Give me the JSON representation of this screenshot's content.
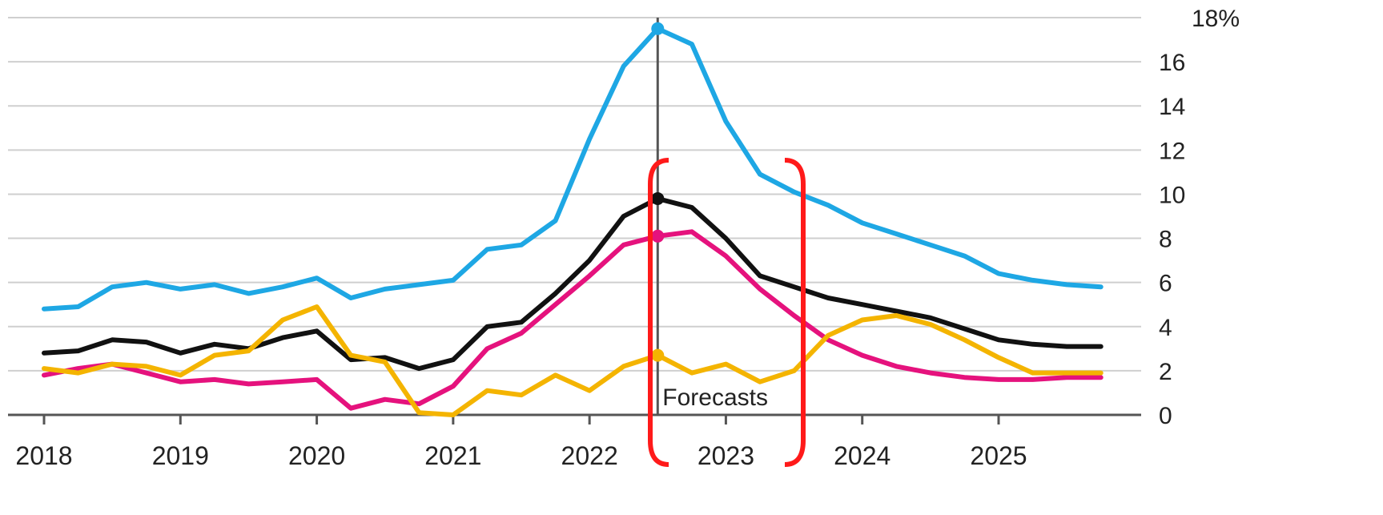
{
  "chart_data": {
    "type": "line",
    "y_unit_label": "18%",
    "ylim": [
      0,
      18
    ],
    "y_ticks": [
      0,
      2,
      4,
      6,
      8,
      10,
      12,
      14,
      16,
      18
    ],
    "y_tick_labels": [
      "0",
      "2",
      "4",
      "6",
      "8",
      "10",
      "12",
      "14",
      "16",
      "18%"
    ],
    "x_tick_labels": [
      "2018",
      "2019",
      "2020",
      "2021",
      "2022",
      "2023",
      "2024",
      "2025"
    ],
    "x_ticks": [
      2018,
      2019,
      2020,
      2021,
      2022,
      2023,
      2024,
      2025
    ],
    "xlim": [
      2017.75,
      2026.0
    ],
    "forecast_start": 2022.5,
    "forecast_label": "Forecasts",
    "grid": true,
    "series": [
      {
        "color": "#1ea7e4",
        "x": [
          2018.0,
          2018.25,
          2018.5,
          2018.75,
          2019.0,
          2019.25,
          2019.5,
          2019.75,
          2020.0,
          2020.25,
          2020.5,
          2020.75,
          2021.0,
          2021.25,
          2021.5,
          2021.75,
          2022.0,
          2022.25,
          2022.5,
          2022.75,
          2023.0,
          2023.25,
          2023.5,
          2023.75,
          2024.0,
          2024.25,
          2024.5,
          2024.75,
          2025.0,
          2025.25,
          2025.5,
          2025.75
        ],
        "values": [
          4.8,
          4.9,
          5.8,
          6.0,
          5.7,
          5.9,
          5.5,
          5.8,
          6.2,
          5.3,
          5.7,
          5.9,
          6.1,
          7.5,
          7.7,
          8.8,
          12.5,
          15.8,
          17.5,
          16.8,
          13.3,
          10.9,
          10.1,
          9.5,
          8.7,
          8.2,
          7.7,
          7.2,
          6.4,
          6.1,
          5.9,
          5.8
        ]
      },
      {
        "color": "#111111",
        "x": [
          2018.0,
          2018.25,
          2018.5,
          2018.75,
          2019.0,
          2019.25,
          2019.5,
          2019.75,
          2020.0,
          2020.25,
          2020.5,
          2020.75,
          2021.0,
          2021.25,
          2021.5,
          2021.75,
          2022.0,
          2022.25,
          2022.5,
          2022.75,
          2023.0,
          2023.25,
          2023.5,
          2023.75,
          2024.0,
          2024.25,
          2024.5,
          2024.75,
          2025.0,
          2025.25,
          2025.5,
          2025.75
        ],
        "values": [
          2.8,
          2.9,
          3.4,
          3.3,
          2.8,
          3.2,
          3.0,
          3.5,
          3.8,
          2.5,
          2.6,
          2.1,
          2.5,
          4.0,
          4.2,
          5.5,
          7.0,
          9.0,
          9.8,
          9.4,
          8.0,
          6.3,
          5.8,
          5.3,
          5.0,
          4.7,
          4.4,
          3.9,
          3.4,
          3.2,
          3.1,
          3.1
        ]
      },
      {
        "color": "#e5127d",
        "x": [
          2018.0,
          2018.25,
          2018.5,
          2018.75,
          2019.0,
          2019.25,
          2019.5,
          2019.75,
          2020.0,
          2020.25,
          2020.5,
          2020.75,
          2021.0,
          2021.25,
          2021.5,
          2021.75,
          2022.0,
          2022.25,
          2022.5,
          2022.75,
          2023.0,
          2023.25,
          2023.5,
          2023.75,
          2024.0,
          2024.25,
          2024.5,
          2024.75,
          2025.0,
          2025.25,
          2025.5,
          2025.75
        ],
        "values": [
          1.8,
          2.1,
          2.3,
          1.9,
          1.5,
          1.6,
          1.4,
          1.5,
          1.6,
          0.3,
          0.7,
          0.5,
          1.3,
          3.0,
          3.7,
          5.0,
          6.3,
          7.7,
          8.1,
          8.3,
          7.2,
          5.7,
          4.5,
          3.4,
          2.7,
          2.2,
          1.9,
          1.7,
          1.6,
          1.6,
          1.7,
          1.7
        ]
      },
      {
        "color": "#f4b400",
        "x": [
          2018.0,
          2018.25,
          2018.5,
          2018.75,
          2019.0,
          2019.25,
          2019.5,
          2019.75,
          2020.0,
          2020.25,
          2020.5,
          2020.75,
          2021.0,
          2021.25,
          2021.5,
          2021.75,
          2022.0,
          2022.25,
          2022.5,
          2022.75,
          2023.0,
          2023.25,
          2023.5,
          2023.75,
          2024.0,
          2024.25,
          2024.5,
          2024.75,
          2025.0,
          2025.25,
          2025.5,
          2025.75
        ],
        "values": [
          2.1,
          1.9,
          2.3,
          2.2,
          1.8,
          2.7,
          2.9,
          4.3,
          4.9,
          2.7,
          2.4,
          0.1,
          0.0,
          1.1,
          0.9,
          1.8,
          1.1,
          2.2,
          2.7,
          1.9,
          2.3,
          1.5,
          2.0,
          3.6,
          4.3,
          4.5,
          4.1,
          3.4,
          2.6,
          1.9,
          1.9,
          1.9
        ]
      }
    ],
    "annotations": {
      "highlight_color": "#ff1a1a",
      "forecast_line_color": "#555555"
    }
  }
}
